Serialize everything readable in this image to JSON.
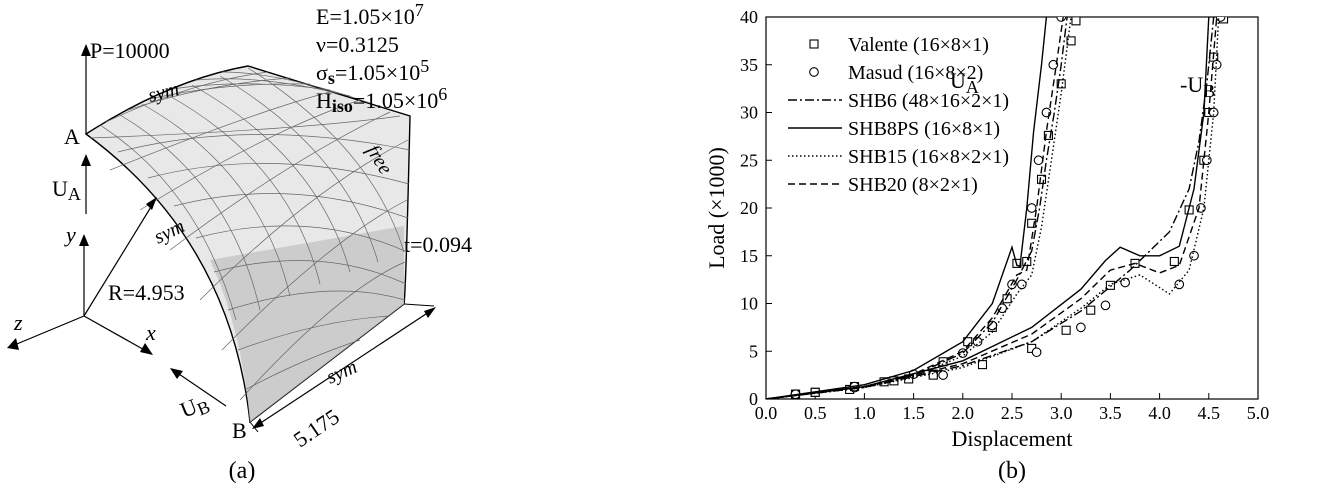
{
  "panel_a": {
    "caption": "(a)",
    "load_label": "P=10000",
    "material": {
      "E": "E=1.05×10",
      "E_exp": "7",
      "nu": "ν=0.3125",
      "sigma": "σ",
      "sigma_sub": "s",
      "sigma_val": "=1.05×10",
      "sigma_exp": "5",
      "H": "H",
      "H_sub": "iso",
      "H_val": "=1.05×10",
      "H_exp": "6"
    },
    "points": {
      "A": "A",
      "B": "B"
    },
    "displacements": {
      "UA": "U",
      "UA_sub": "A",
      "UB": "U",
      "UB_sub": "B"
    },
    "axes": {
      "x": "x",
      "y": "y",
      "z": "z"
    },
    "radius": "R=4.953",
    "thickness": "t=0.094",
    "length": "5.175",
    "edges": {
      "sym_top": "sym",
      "sym_left": "sym",
      "sym_bottom": "sym",
      "free": "free"
    }
  },
  "panel_b": {
    "caption": "(b)",
    "curve_labels": {
      "UA": "U",
      "UA_sub": "A",
      "UB": "-U",
      "UB_sub": "B"
    }
  },
  "chart_data": {
    "type": "line",
    "xlabel": "Displacement",
    "ylabel": "Load (×1000)",
    "xlim": [
      0,
      5
    ],
    "ylim": [
      0,
      40
    ],
    "xticks": [
      "0.0",
      "0.5",
      "1.0",
      "1.5",
      "2.0",
      "2.5",
      "3.0",
      "3.5",
      "4.0",
      "4.5",
      "5.0"
    ],
    "yticks": [
      "0",
      "5",
      "10",
      "15",
      "20",
      "25",
      "30",
      "35",
      "40"
    ],
    "legend_position": "top-left",
    "series": [
      {
        "name": "Valente (16×8×1)",
        "style": "square",
        "color": "#000000",
        "ua": [
          [
            0.3,
            0.5
          ],
          [
            0.5,
            0.7
          ],
          [
            0.85,
            1.0
          ],
          [
            1.3,
            1.9
          ],
          [
            1.7,
            2.6
          ],
          [
            1.8,
            3.9
          ],
          [
            2.05,
            6.0
          ],
          [
            2.3,
            7.5
          ],
          [
            2.45,
            10.5
          ],
          [
            2.55,
            14.2
          ],
          [
            2.65,
            14.4
          ],
          [
            2.7,
            18.4
          ],
          [
            2.8,
            23.0
          ],
          [
            2.87,
            27.6
          ],
          [
            3.0,
            33.0
          ],
          [
            3.1,
            37.5
          ],
          [
            3.15,
            39.6
          ]
        ],
        "ub": [
          [
            0.3,
            0.5
          ],
          [
            0.5,
            0.7
          ],
          [
            0.9,
            1.3
          ],
          [
            1.2,
            1.8
          ],
          [
            1.45,
            2.1
          ],
          [
            1.7,
            2.5
          ],
          [
            2.2,
            3.6
          ],
          [
            2.7,
            5.3
          ],
          [
            3.05,
            7.2
          ],
          [
            3.3,
            9.3
          ],
          [
            3.5,
            11.9
          ],
          [
            3.75,
            14.2
          ],
          [
            4.15,
            14.4
          ],
          [
            4.3,
            19.8
          ],
          [
            4.45,
            25.0
          ],
          [
            4.5,
            30.0
          ],
          [
            4.55,
            35.8
          ],
          [
            4.65,
            39.8
          ]
        ]
      },
      {
        "name": "Masud (16×8×2)",
        "style": "circle",
        "color": "#000000",
        "ua": [
          [
            0.3,
            0.5
          ],
          [
            0.9,
            1.2
          ],
          [
            1.5,
            2.6
          ],
          [
            2.0,
            4.8
          ],
          [
            2.15,
            6.0
          ],
          [
            2.3,
            7.7
          ],
          [
            2.4,
            9.5
          ],
          [
            2.5,
            12.0
          ],
          [
            2.6,
            12.0
          ],
          [
            2.7,
            20.0
          ],
          [
            2.77,
            25.0
          ],
          [
            2.85,
            30.0
          ],
          [
            2.92,
            35.0
          ],
          [
            3.0,
            40.0
          ]
        ],
        "ub": [
          [
            0.3,
            0.5
          ],
          [
            0.9,
            1.3
          ],
          [
            1.8,
            2.5
          ],
          [
            2.75,
            4.9
          ],
          [
            3.2,
            7.5
          ],
          [
            3.45,
            9.8
          ],
          [
            3.65,
            12.2
          ],
          [
            4.2,
            12.0
          ],
          [
            4.35,
            15.0
          ],
          [
            4.42,
            20.0
          ],
          [
            4.48,
            25.0
          ],
          [
            4.55,
            30.0
          ],
          [
            4.58,
            35.0
          ],
          [
            4.62,
            40.0
          ]
        ]
      },
      {
        "name": "SHB6 (48×16×2×1)",
        "style": "dashdot",
        "color": "#000000",
        "ua": [
          [
            0,
            0
          ],
          [
            1,
            1.3
          ],
          [
            1.5,
            2.5
          ],
          [
            2.0,
            4.8
          ],
          [
            2.3,
            8.0
          ],
          [
            2.55,
            12.5
          ],
          [
            2.7,
            15.5
          ],
          [
            2.78,
            20.0
          ],
          [
            2.85,
            25.0
          ],
          [
            2.93,
            30.0
          ],
          [
            3.0,
            35.0
          ],
          [
            3.06,
            40.0
          ]
        ],
        "ub": [
          [
            0,
            0
          ],
          [
            1,
            1.2
          ],
          [
            2.0,
            3.5
          ],
          [
            2.7,
            6.0
          ],
          [
            3.2,
            9.2
          ],
          [
            3.7,
            13.5
          ],
          [
            4.1,
            17.5
          ],
          [
            4.3,
            22.0
          ],
          [
            4.4,
            27.0
          ],
          [
            4.48,
            33.0
          ],
          [
            4.55,
            40.0
          ]
        ]
      },
      {
        "name": "SHB8PS (16×8×1)",
        "style": "solid",
        "color": "#000000",
        "ua": [
          [
            0,
            0
          ],
          [
            1,
            1.5
          ],
          [
            1.5,
            3.0
          ],
          [
            2.0,
            6.0
          ],
          [
            2.3,
            10.0
          ],
          [
            2.5,
            15.9
          ],
          [
            2.55,
            14.0
          ],
          [
            2.58,
            13.9
          ],
          [
            2.65,
            20.0
          ],
          [
            2.72,
            28.0
          ],
          [
            2.8,
            35.0
          ],
          [
            2.85,
            40.0
          ]
        ],
        "ub": [
          [
            0,
            0
          ],
          [
            1,
            1.3
          ],
          [
            2.0,
            4.0
          ],
          [
            2.7,
            7.5
          ],
          [
            3.2,
            11.5
          ],
          [
            3.45,
            14.5
          ],
          [
            3.6,
            15.9
          ],
          [
            3.8,
            15.0
          ],
          [
            4.0,
            15.0
          ],
          [
            4.2,
            16.0
          ],
          [
            4.35,
            22.0
          ],
          [
            4.45,
            30.0
          ],
          [
            4.5,
            40.0
          ]
        ]
      },
      {
        "name": "SHB15 (16×8×2×1)",
        "style": "dotted",
        "color": "#000000",
        "ua": [
          [
            0,
            0
          ],
          [
            1,
            1.2
          ],
          [
            1.5,
            2.4
          ],
          [
            2.0,
            4.5
          ],
          [
            2.3,
            7.0
          ],
          [
            2.55,
            11.0
          ],
          [
            2.7,
            13.0
          ],
          [
            2.8,
            18.0
          ],
          [
            2.9,
            25.0
          ],
          [
            3.0,
            32.0
          ],
          [
            3.1,
            40.0
          ]
        ],
        "ub": [
          [
            0,
            0
          ],
          [
            1,
            1.2
          ],
          [
            2.0,
            3.3
          ],
          [
            2.7,
            6.0
          ],
          [
            3.2,
            9.5
          ],
          [
            3.5,
            12.0
          ],
          [
            3.8,
            13.0
          ],
          [
            4.1,
            11.0
          ],
          [
            4.3,
            13.5
          ],
          [
            4.45,
            20.0
          ],
          [
            4.55,
            30.0
          ],
          [
            4.6,
            40.0
          ]
        ]
      },
      {
        "name": "SHB20 (8×2×1)",
        "style": "dashed",
        "color": "#000000",
        "ua": [
          [
            0,
            0
          ],
          [
            1,
            1.3
          ],
          [
            1.5,
            2.6
          ],
          [
            2.0,
            5.0
          ],
          [
            2.3,
            8.5
          ],
          [
            2.55,
            13.0
          ],
          [
            2.65,
            13.5
          ],
          [
            2.75,
            20.0
          ],
          [
            2.85,
            28.0
          ],
          [
            2.95,
            35.0
          ],
          [
            3.02,
            40.0
          ]
        ],
        "ub": [
          [
            0,
            0
          ],
          [
            1,
            1.3
          ],
          [
            2.0,
            3.7
          ],
          [
            2.7,
            6.8
          ],
          [
            3.2,
            10.5
          ],
          [
            3.5,
            13.5
          ],
          [
            3.75,
            14.2
          ],
          [
            4.0,
            13.2
          ],
          [
            4.2,
            14.0
          ],
          [
            4.4,
            20.0
          ],
          [
            4.5,
            30.0
          ],
          [
            4.58,
            40.0
          ]
        ]
      }
    ]
  }
}
